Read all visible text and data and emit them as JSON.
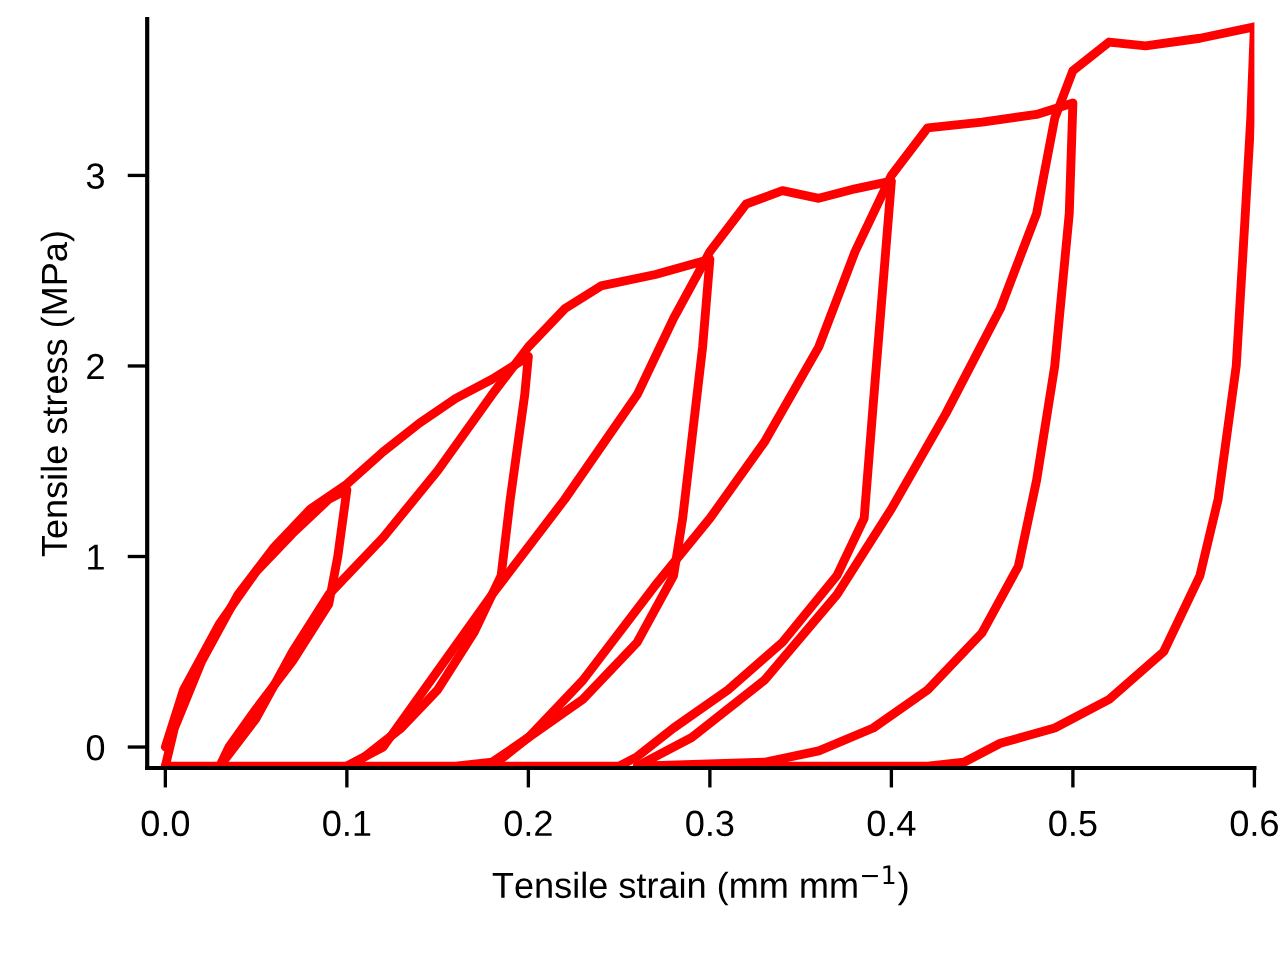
{
  "chart_data": {
    "type": "line",
    "xlabel": "Tensile strain (mm mm$^{−1}$)",
    "ylabel": "Tensile stress (MPa)",
    "xlim": [
      -0.01,
      0.6
    ],
    "ylim": [
      -0.11,
      3.82
    ],
    "xticks": [
      {
        "value": 0,
        "label": "0.0"
      },
      0.1,
      0.2,
      0.3,
      0.4,
      0.5,
      0.6
    ],
    "yticks": [
      0,
      1,
      2,
      3
    ],
    "grid": false,
    "legend": false,
    "marker": "none",
    "line_style": "solid",
    "series": [
      {
        "color": "#ff0000",
        "x": [
          0,
          0.01,
          0.03,
          0.05,
          0.07,
          0.09,
          0.1,
          0.1,
          0.095,
          0.09,
          0.07,
          0.05,
          0.035,
          0.03,
          0.0
        ],
        "values": [
          0,
          0.3,
          0.65,
          0.92,
          1.12,
          1.3,
          1.35,
          1.35,
          1.0,
          0.75,
          0.45,
          0.2,
          0.0,
          -0.1,
          -0.1
        ]
      },
      {
        "color": "#ff0000",
        "x": [
          0.0,
          0.005,
          0.02,
          0.04,
          0.06,
          0.08,
          0.1,
          0.12,
          0.14,
          0.16,
          0.18,
          0.2,
          0.198,
          0.19,
          0.185,
          0.17,
          0.15,
          0.13,
          0.11,
          0.1,
          0.03
        ],
        "values": [
          -0.1,
          0.1,
          0.45,
          0.8,
          1.05,
          1.25,
          1.38,
          1.55,
          1.7,
          1.83,
          1.93,
          2.05,
          1.85,
          1.3,
          0.9,
          0.6,
          0.3,
          0.1,
          -0.05,
          -0.1,
          -0.1
        ]
      },
      {
        "color": "#ff0000",
        "x": [
          0.03,
          0.05,
          0.07,
          0.09,
          0.12,
          0.15,
          0.18,
          0.2,
          0.22,
          0.24,
          0.27,
          0.3,
          0.296,
          0.285,
          0.28,
          0.26,
          0.23,
          0.2,
          0.18,
          0.16,
          0.1
        ],
        "values": [
          -0.1,
          0.15,
          0.5,
          0.8,
          1.1,
          1.45,
          1.85,
          2.1,
          2.3,
          2.42,
          2.48,
          2.56,
          2.1,
          1.2,
          0.9,
          0.55,
          0.25,
          0.05,
          -0.08,
          -0.1,
          -0.1
        ]
      },
      {
        "color": "#ff0000",
        "x": [
          0.1,
          0.12,
          0.15,
          0.18,
          0.22,
          0.26,
          0.28,
          0.3,
          0.32,
          0.34,
          0.36,
          0.38,
          0.4,
          0.396,
          0.39,
          0.385,
          0.37,
          0.34,
          0.31,
          0.28,
          0.26,
          0.25,
          0.18
        ],
        "values": [
          -0.1,
          0.0,
          0.4,
          0.8,
          1.3,
          1.85,
          2.25,
          2.6,
          2.85,
          2.92,
          2.88,
          2.93,
          2.97,
          2.5,
          1.8,
          1.2,
          0.9,
          0.55,
          0.3,
          0.1,
          -0.05,
          -0.1,
          -0.1
        ]
      },
      {
        "color": "#ff0000",
        "x": [
          0.18,
          0.2,
          0.23,
          0.27,
          0.3,
          0.33,
          0.36,
          0.38,
          0.4,
          0.42,
          0.45,
          0.48,
          0.5,
          0.498,
          0.49,
          0.48,
          0.47,
          0.45,
          0.42,
          0.39,
          0.36,
          0.33,
          0.26
        ],
        "values": [
          -0.1,
          0.05,
          0.35,
          0.85,
          1.2,
          1.6,
          2.1,
          2.6,
          3.0,
          3.25,
          3.28,
          3.32,
          3.38,
          2.8,
          2.0,
          1.4,
          0.95,
          0.6,
          0.3,
          0.1,
          -0.02,
          -0.08,
          -0.1
        ]
      },
      {
        "color": "#ff0000",
        "x": [
          0.26,
          0.29,
          0.33,
          0.37,
          0.4,
          0.43,
          0.46,
          0.48,
          0.49,
          0.5,
          0.52,
          0.54,
          0.57,
          0.6,
          0.598,
          0.595,
          0.59,
          0.58,
          0.57,
          0.55,
          0.52,
          0.49,
          0.46,
          0.44,
          0.42,
          0.35,
          0.27
        ],
        "values": [
          -0.1,
          0.05,
          0.35,
          0.8,
          1.25,
          1.75,
          2.3,
          2.8,
          3.3,
          3.55,
          3.7,
          3.68,
          3.72,
          3.78,
          3.3,
          2.8,
          2.0,
          1.3,
          0.9,
          0.5,
          0.25,
          0.1,
          0.02,
          -0.08,
          -0.1,
          -0.1,
          -0.1
        ]
      }
    ]
  }
}
